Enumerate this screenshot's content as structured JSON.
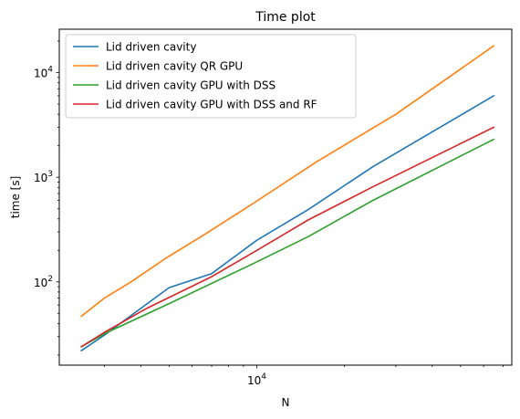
{
  "chart_data": {
    "type": "line",
    "title": "Time plot",
    "xlabel": "N",
    "ylabel": "time [s]",
    "xscale": "log",
    "yscale": "log",
    "xlim": [
      2100,
      75000
    ],
    "ylim": [
      16,
      26000
    ],
    "x_major_ticks": [
      {
        "value": 10000,
        "base": "10",
        "exp": "4"
      }
    ],
    "y_major_ticks": [
      {
        "value": 100,
        "base": "10",
        "exp": "2"
      },
      {
        "value": 1000,
        "base": "10",
        "exp": "3"
      },
      {
        "value": 10000,
        "base": "10",
        "exp": "4"
      }
    ],
    "grid": false,
    "legend_position": "top-left",
    "series": [
      {
        "name": "Lid driven cavity",
        "color": "#1f77b4",
        "x": [
          2500,
          3000,
          5000,
          7000,
          10000,
          15000,
          25000,
          65000
        ],
        "y": [
          22,
          31,
          88,
          120,
          250,
          490,
          1260,
          6000
        ]
      },
      {
        "name": "Lid driven cavity QR GPU",
        "color": "#ff7f0e",
        "x": [
          2500,
          3000,
          3700,
          4900,
          6700,
          9700,
          16000,
          30000,
          65000
        ],
        "y": [
          47,
          70,
          100,
          170,
          290,
          560,
          1400,
          4000,
          18000
        ]
      },
      {
        "name": "Lid driven cavity GPU with DSS",
        "color": "#2ca02c",
        "x": [
          2500,
          3000,
          5000,
          9500,
          15000,
          25000,
          65000
        ],
        "y": [
          24,
          32,
          62,
          145,
          270,
          600,
          2300
        ]
      },
      {
        "name": "Lid driven cavity GPU with DSS and RF",
        "color": "#d62728",
        "x": [
          2500,
          3000,
          4200,
          7000,
          10000,
          15000,
          25000,
          65000
        ],
        "y": [
          24,
          33,
          56,
          112,
          200,
          390,
          810,
          3000
        ]
      }
    ]
  }
}
